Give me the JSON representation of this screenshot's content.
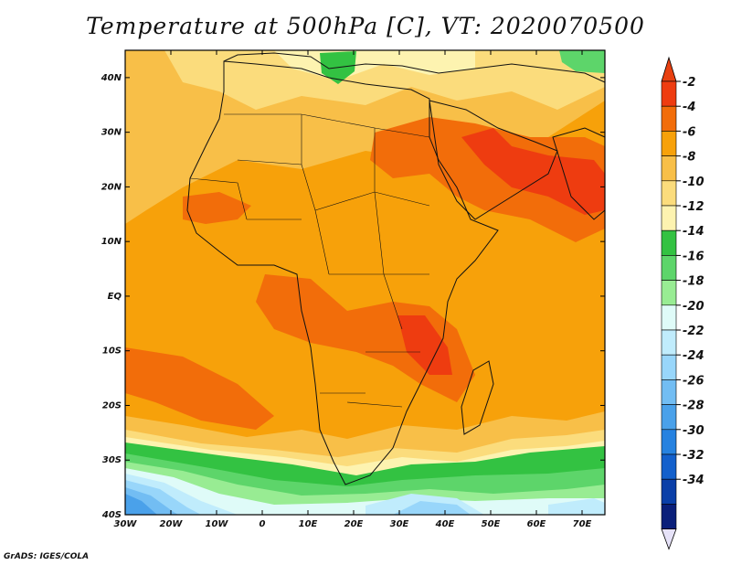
{
  "title": "Temperature at 500hPa [C], VT: 2020070500",
  "credit": "GrADS: IGES/COLA",
  "map": {
    "lat_labels": [
      "40N",
      "30N",
      "20N",
      "10N",
      "EQ",
      "10S",
      "20S",
      "30S",
      "40S"
    ],
    "lon_labels": [
      "30W",
      "20W",
      "10W",
      "0",
      "10E",
      "20E",
      "30E",
      "40E",
      "50E",
      "60E",
      "70E"
    ],
    "lat_range": [
      -40,
      45
    ],
    "lon_range": [
      -30,
      75
    ]
  },
  "colorbar": {
    "labels": [
      "-2",
      "-4",
      "-6",
      "-8",
      "-10",
      "-12",
      "-14",
      "-16",
      "-18",
      "-20",
      "-22",
      "-24",
      "-26",
      "-28",
      "-30",
      "-32",
      "-34"
    ],
    "colors": [
      "#ee3c10",
      "#f26d0a",
      "#f7a10a",
      "#f8bf48",
      "#fbdc7c",
      "#fdf3b0",
      "#33c242",
      "#5dd56a",
      "#98ec93",
      "#dffbf8",
      "#c0ecfc",
      "#98d6fa",
      "#72bdf3",
      "#4aa1ea",
      "#2682e0",
      "#1360cc",
      "#0a3fa8",
      "#0a1f7a"
    ],
    "over_color": "#e84010",
    "under_color": "#e6e2f8"
  }
}
